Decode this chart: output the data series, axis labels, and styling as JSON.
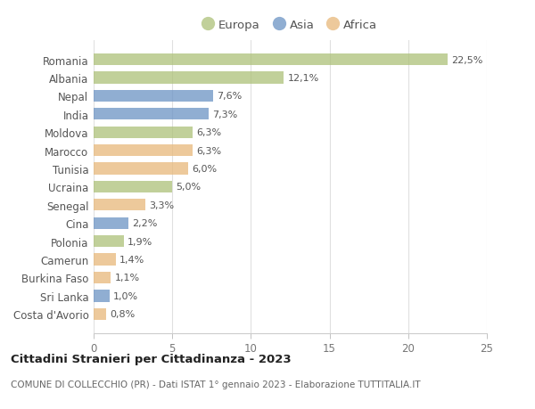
{
  "countries": [
    "Romania",
    "Albania",
    "Nepal",
    "India",
    "Moldova",
    "Marocco",
    "Tunisia",
    "Ucraina",
    "Senegal",
    "Cina",
    "Polonia",
    "Camerun",
    "Burkina Faso",
    "Sri Lanka",
    "Costa d'Avorio"
  ],
  "values": [
    22.5,
    12.1,
    7.6,
    7.3,
    6.3,
    6.3,
    6.0,
    5.0,
    3.3,
    2.2,
    1.9,
    1.4,
    1.1,
    1.0,
    0.8
  ],
  "labels": [
    "22,5%",
    "12,1%",
    "7,6%",
    "7,3%",
    "6,3%",
    "6,3%",
    "6,0%",
    "5,0%",
    "3,3%",
    "2,2%",
    "1,9%",
    "1,4%",
    "1,1%",
    "1,0%",
    "0,8%"
  ],
  "continents": [
    "Europa",
    "Europa",
    "Asia",
    "Asia",
    "Europa",
    "Africa",
    "Africa",
    "Europa",
    "Africa",
    "Asia",
    "Europa",
    "Africa",
    "Africa",
    "Asia",
    "Africa"
  ],
  "colors": {
    "Europa": "#adc178",
    "Asia": "#6b93c4",
    "Africa": "#e8b87a"
  },
  "title": "Cittadini Stranieri per Cittadinanza - 2023",
  "subtitle": "COMUNE DI COLLECCHIO (PR) - Dati ISTAT 1° gennaio 2023 - Elaborazione TUTTITALIA.IT",
  "xlim": [
    0,
    25
  ],
  "xticks": [
    0,
    5,
    10,
    15,
    20,
    25
  ],
  "background_color": "#ffffff",
  "grid_color": "#e0e0e0",
  "bar_alpha": 0.75,
  "bar_height": 0.65
}
